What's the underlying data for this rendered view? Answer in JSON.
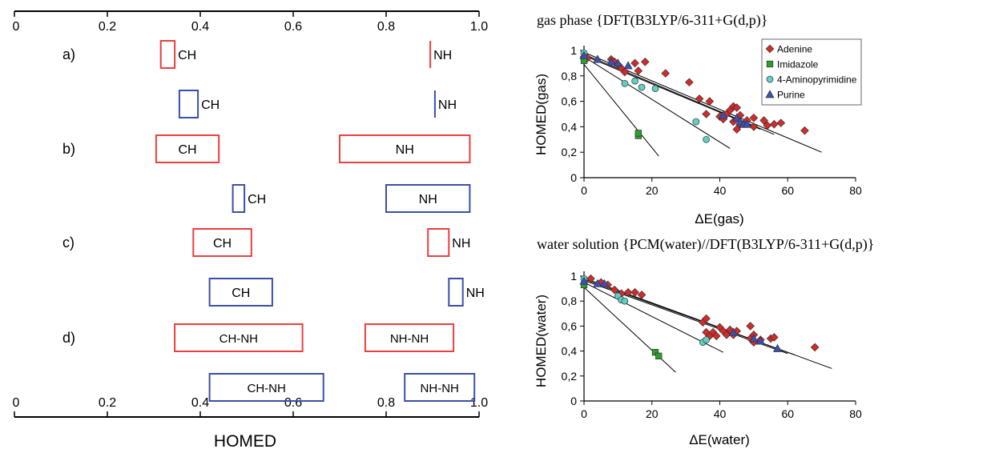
{
  "chart_data": [
    {
      "type": "range-bar",
      "xlabel": "HOMED",
      "xlim": [
        0,
        1
      ],
      "ticks": [
        "0",
        "0.2",
        "0.4",
        "0.6",
        "0.8",
        "1.0"
      ],
      "groups": [
        {
          "label": "a)",
          "rows": [
            {
              "color": "#e8403f",
              "bars": [
                {
                  "label": "CH",
                  "min": 0.315,
                  "max": 0.345,
                  "label_pos": "right"
                },
                {
                  "label": "NH",
                  "min": 0.895,
                  "max": 0.895,
                  "label_pos": "right"
                }
              ]
            },
            {
              "color": "#3b4fa8",
              "bars": [
                {
                  "label": "CH",
                  "min": 0.355,
                  "max": 0.395,
                  "label_pos": "right"
                },
                {
                  "label": "NH",
                  "min": 0.905,
                  "max": 0.905,
                  "label_pos": "right"
                }
              ]
            }
          ]
        },
        {
          "label": "b)",
          "rows": [
            {
              "color": "#e8403f",
              "bars": [
                {
                  "label": "CH",
                  "min": 0.305,
                  "max": 0.44,
                  "label_pos": "inside"
                },
                {
                  "label": "NH",
                  "min": 0.7,
                  "max": 0.98,
                  "label_pos": "inside"
                }
              ]
            },
            {
              "color": "#3b4fa8",
              "bars": [
                {
                  "label": "CH",
                  "min": 0.47,
                  "max": 0.495,
                  "label_pos": "right"
                },
                {
                  "label": "NH",
                  "min": 0.8,
                  "max": 0.98,
                  "label_pos": "inside"
                }
              ]
            }
          ]
        },
        {
          "label": "c)",
          "rows": [
            {
              "color": "#e8403f",
              "bars": [
                {
                  "label": "CH",
                  "min": 0.385,
                  "max": 0.51,
                  "label_pos": "inside"
                },
                {
                  "label": "NH",
                  "min": 0.89,
                  "max": 0.935,
                  "label_pos": "right"
                }
              ]
            },
            {
              "color": "#3b4fa8",
              "bars": [
                {
                  "label": "CH",
                  "min": 0.42,
                  "max": 0.555,
                  "label_pos": "inside"
                },
                {
                  "label": "NH",
                  "min": 0.935,
                  "max": 0.965,
                  "label_pos": "right"
                }
              ]
            }
          ]
        },
        {
          "label": "d)",
          "rows": [
            {
              "color": "#e8403f",
              "bars": [
                {
                  "label": "CH-NH",
                  "min": 0.345,
                  "max": 0.62,
                  "label_pos": "inside"
                },
                {
                  "label": "NH-NH",
                  "min": 0.755,
                  "max": 0.945,
                  "label_pos": "inside"
                }
              ]
            },
            {
              "color": "#3b4fa8",
              "bars": [
                {
                  "label": "CH-NH",
                  "min": 0.42,
                  "max": 0.665,
                  "label_pos": "inside"
                },
                {
                  "label": "NH-NH",
                  "min": 0.84,
                  "max": 0.99,
                  "label_pos": "inside"
                }
              ]
            }
          ]
        }
      ]
    },
    {
      "type": "scatter",
      "title": "gas phase {DFT(B3LYP/6-311+G(d,p)}",
      "xlabel": "ΔE(gas)",
      "ylabel": "HOMED(gas)",
      "xlim": [
        0,
        80
      ],
      "ylim": [
        0,
        1
      ],
      "xticks": [
        "0",
        "20",
        "40",
        "60",
        "80"
      ],
      "yticks": [
        "0",
        "0,2",
        "0,4",
        "0,6",
        "0,8",
        "1"
      ],
      "legend": "top-right",
      "series": [
        {
          "name": "Adenine",
          "color": "#d42a2a",
          "marker": "diamond",
          "points": [
            [
              0,
              0.95
            ],
            [
              1,
              0.94
            ],
            [
              8,
              0.93
            ],
            [
              9,
              0.91
            ],
            [
              10,
              0.89
            ],
            [
              11,
              0.86
            ],
            [
              12,
              0.83
            ],
            [
              15,
              0.9
            ],
            [
              16,
              0.84
            ],
            [
              18,
              0.91
            ],
            [
              24,
              0.82
            ],
            [
              31,
              0.75
            ],
            [
              34,
              0.62
            ],
            [
              36,
              0.5
            ],
            [
              37,
              0.6
            ],
            [
              40,
              0.48
            ],
            [
              41,
              0.46
            ],
            [
              42,
              0.5
            ],
            [
              43,
              0.53
            ],
            [
              44,
              0.56
            ],
            [
              44,
              0.44
            ],
            [
              45,
              0.38
            ],
            [
              45,
              0.55
            ],
            [
              46,
              0.49
            ],
            [
              46,
              0.42
            ],
            [
              48,
              0.45
            ],
            [
              50,
              0.47
            ],
            [
              50,
              0.4
            ],
            [
              53,
              0.45
            ],
            [
              54,
              0.41
            ],
            [
              56,
              0.42
            ],
            [
              58,
              0.43
            ],
            [
              65,
              0.37
            ]
          ]
        },
        {
          "name": "Imidazole",
          "color": "#2e9e2e",
          "marker": "square",
          "points": [
            [
              0,
              0.92
            ],
            [
              16,
              0.33
            ],
            [
              16,
              0.35
            ]
          ]
        },
        {
          "name": "4-Aminopyrimidine",
          "color": "#5fd0c4",
          "marker": "circle",
          "points": [
            [
              0,
              0.98
            ],
            [
              12,
              0.74
            ],
            [
              15,
              0.76
            ],
            [
              17,
              0.71
            ],
            [
              21,
              0.7
            ],
            [
              33,
              0.44
            ],
            [
              36,
              0.3
            ]
          ]
        },
        {
          "name": "Purine",
          "color": "#3a4fb8",
          "marker": "triangle",
          "points": [
            [
              0,
              0.96
            ],
            [
              4,
              0.93
            ],
            [
              8,
              0.91
            ],
            [
              10,
              0.9
            ],
            [
              13,
              0.88
            ],
            [
              41,
              0.49
            ],
            [
              45,
              0.47
            ],
            [
              46,
              0.44
            ],
            [
              47,
              0.42
            ],
            [
              48,
              0.42
            ]
          ]
        }
      ],
      "trendlines": [
        [
          0,
          0.985,
          70,
          0.2
        ],
        [
          0,
          0.97,
          56,
          0.34
        ],
        [
          0,
          0.96,
          52,
          0.38
        ],
        [
          0,
          0.95,
          43,
          0.23
        ],
        [
          0,
          0.89,
          22,
          0.17
        ]
      ]
    },
    {
      "type": "scatter",
      "title": "water solution {PCM(water)//DFT(B3LYP/6-311+G(d,p)}",
      "xlabel": "ΔE(water)",
      "ylabel": "HOMED(water)",
      "xlim": [
        0,
        80
      ],
      "ylim": [
        0,
        1
      ],
      "xticks": [
        "0",
        "20",
        "40",
        "60",
        "80"
      ],
      "yticks": [
        "0",
        "0,2",
        "0,4",
        "0,6",
        "0,8",
        "1"
      ],
      "series": [
        {
          "name": "Adenine",
          "color": "#d42a2a",
          "marker": "diamond",
          "points": [
            [
              2,
              0.98
            ],
            [
              5,
              0.95
            ],
            [
              7,
              0.93
            ],
            [
              9,
              0.89
            ],
            [
              11,
              0.86
            ],
            [
              13,
              0.87
            ],
            [
              15,
              0.87
            ],
            [
              17,
              0.85
            ],
            [
              35,
              0.63
            ],
            [
              36,
              0.66
            ],
            [
              36,
              0.55
            ],
            [
              37,
              0.52
            ],
            [
              38,
              0.55
            ],
            [
              39,
              0.52
            ],
            [
              40,
              0.59
            ],
            [
              41,
              0.56
            ],
            [
              42,
              0.53
            ],
            [
              43,
              0.57
            ],
            [
              44,
              0.53
            ],
            [
              45,
              0.56
            ],
            [
              49,
              0.6
            ],
            [
              49,
              0.5
            ],
            [
              50,
              0.47
            ],
            [
              50,
              0.53
            ],
            [
              52,
              0.49
            ],
            [
              55,
              0.5
            ],
            [
              56,
              0.51
            ],
            [
              68,
              0.43
            ]
          ]
        },
        {
          "name": "Imidazole",
          "color": "#2e9e2e",
          "marker": "square",
          "points": [
            [
              0,
              0.93
            ],
            [
              21,
              0.39
            ],
            [
              22,
              0.36
            ]
          ]
        },
        {
          "name": "4-Aminopyrimidine",
          "color": "#5fd0c4",
          "marker": "circle",
          "points": [
            [
              0,
              0.98
            ],
            [
              10,
              0.84
            ],
            [
              11,
              0.81
            ],
            [
              12,
              0.8
            ],
            [
              35,
              0.47
            ],
            [
              36,
              0.49
            ]
          ]
        },
        {
          "name": "Purine",
          "color": "#3a4fb8",
          "marker": "triangle",
          "points": [
            [
              0,
              0.96
            ],
            [
              4,
              0.94
            ],
            [
              6,
              0.94
            ],
            [
              44,
              0.55
            ],
            [
              50,
              0.5
            ],
            [
              52,
              0.48
            ],
            [
              57,
              0.42
            ]
          ]
        }
      ],
      "trendlines": [
        [
          0,
          0.985,
          73,
          0.26
        ],
        [
          0,
          0.975,
          62,
          0.37
        ],
        [
          0,
          0.965,
          60,
          0.38
        ],
        [
          0,
          0.95,
          41,
          0.39
        ],
        [
          0,
          0.91,
          27,
          0.23
        ]
      ]
    }
  ]
}
